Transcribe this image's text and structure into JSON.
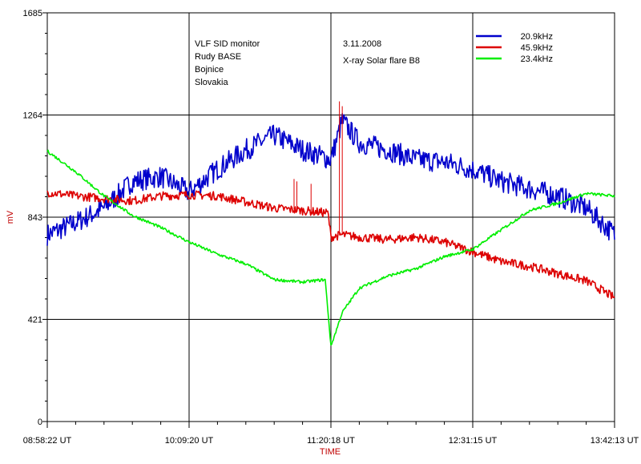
{
  "chart_data": {
    "type": "line",
    "xlabel": "TIME",
    "ylabel": "mV",
    "ylim": [
      0,
      1685
    ],
    "y_ticks": [
      "0",
      "421",
      "843",
      "1264",
      "1685"
    ],
    "x_ticks": [
      "08:58:22 UT",
      "10:09:20 UT",
      "11:20:18 UT",
      "12:31:15 UT",
      "13:42:13 UT"
    ],
    "grid": true,
    "legend_position": "top-right",
    "annotations": {
      "station": [
        "VLF SID monitor",
        "Rudy BASE",
        "Bojnice",
        "Slovakia"
      ],
      "event": [
        "3.11.2008",
        "X-ray Solar flare B8"
      ]
    },
    "series": [
      {
        "name": "20.9kHz",
        "color": "#0000cc",
        "x": [
          0,
          0.05,
          0.1,
          0.15,
          0.2,
          0.25,
          0.3,
          0.35,
          0.4,
          0.45,
          0.5,
          0.52,
          0.55,
          0.6,
          0.65,
          0.7,
          0.75,
          0.8,
          0.85,
          0.9,
          0.95,
          1.0
        ],
        "y": [
          770,
          820,
          880,
          990,
          1010,
          945,
          1040,
          1120,
          1180,
          1120,
          1080,
          1240,
          1150,
          1120,
          1080,
          1070,
          1040,
          990,
          960,
          930,
          880,
          770
        ],
        "noise": 45
      },
      {
        "name": "45.9kHz",
        "color": "#dd0000",
        "x": [
          0,
          0.05,
          0.1,
          0.15,
          0.2,
          0.25,
          0.3,
          0.35,
          0.4,
          0.45,
          0.495,
          0.5,
          0.52,
          0.55,
          0.6,
          0.65,
          0.7,
          0.75,
          0.8,
          0.85,
          0.9,
          0.95,
          1.0
        ],
        "y": [
          945,
          930,
          920,
          910,
          930,
          935,
          930,
          905,
          880,
          870,
          860,
          760,
          770,
          760,
          750,
          760,
          740,
          700,
          660,
          640,
          610,
          580,
          510
        ],
        "noise": 18
      },
      {
        "name": "23.4kHz",
        "color": "#00ee00",
        "x": [
          0,
          0.05,
          0.1,
          0.15,
          0.2,
          0.25,
          0.3,
          0.35,
          0.4,
          0.45,
          0.49,
          0.5,
          0.52,
          0.55,
          0.6,
          0.65,
          0.7,
          0.75,
          0.8,
          0.85,
          0.9,
          0.95,
          1.0
        ],
        "y": [
          1115,
          1030,
          930,
          850,
          800,
          740,
          690,
          650,
          585,
          575,
          585,
          310,
          450,
          550,
          600,
          630,
          680,
          710,
          790,
          870,
          900,
          940,
          930
        ],
        "noise": 6
      }
    ]
  }
}
